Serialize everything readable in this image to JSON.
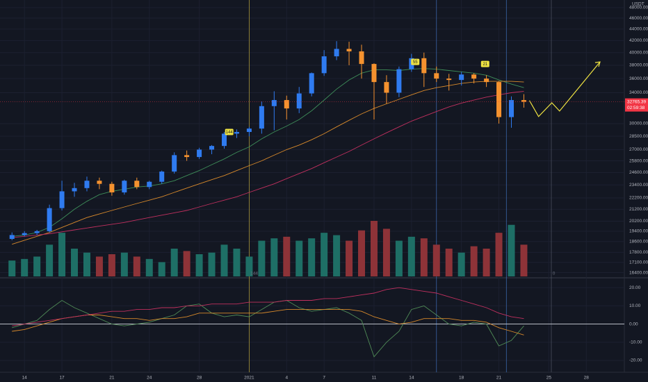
{
  "chart_data": [
    {
      "type": "candlestick",
      "currency": "USDT",
      "x": [
        -1,
        0,
        1,
        2,
        3,
        4,
        5,
        6,
        7,
        8,
        9,
        10,
        11,
        12,
        13,
        14,
        15,
        16,
        17,
        18,
        19,
        20,
        21,
        22,
        23,
        24,
        25,
        26,
        27,
        28,
        29,
        30,
        31,
        32,
        33,
        34,
        35,
        36,
        37,
        38,
        39,
        40
      ],
      "open": [
        18800,
        19100,
        19250,
        19400,
        21300,
        22800,
        23100,
        23800,
        23500,
        22700,
        23800,
        23200,
        23700,
        24700,
        26400,
        26200,
        27000,
        27400,
        28800,
        29000,
        29400,
        32200,
        33000,
        31900,
        33900,
        36800,
        39400,
        40600,
        40200,
        38200,
        35500,
        34000,
        37400,
        39100,
        36800,
        36000,
        35800,
        36600,
        36000,
        35500,
        30800,
        33000
      ],
      "high": [
        19300,
        19400,
        19500,
        21600,
        23800,
        23600,
        24200,
        24100,
        23700,
        23900,
        24100,
        23800,
        24800,
        26700,
        26900,
        27200,
        27500,
        29000,
        29300,
        29600,
        32800,
        34200,
        33600,
        34800,
        36900,
        40400,
        41900,
        41800,
        41300,
        38300,
        36500,
        37800,
        39800,
        40000,
        37800,
        36700,
        37000,
        36800,
        36500,
        35600,
        33500,
        33800
      ],
      "low": [
        18700,
        19000,
        19100,
        19300,
        21100,
        22300,
        22800,
        23000,
        22400,
        22500,
        23000,
        23000,
        23500,
        24500,
        25800,
        26000,
        26500,
        27100,
        28300,
        28500,
        28800,
        29200,
        30500,
        31300,
        33500,
        36400,
        38800,
        38000,
        36000,
        30500,
        32500,
        33400,
        37000,
        34800,
        35500,
        34300,
        35000,
        35300,
        34800,
        30000,
        29500,
        32000
      ],
      "close": [
        19100,
        19250,
        19400,
        21300,
        22800,
        23100,
        23800,
        23500,
        22700,
        23800,
        23200,
        23700,
        24700,
        26400,
        26200,
        27000,
        27400,
        28800,
        29000,
        29400,
        32200,
        33000,
        31900,
        33900,
        36800,
        39400,
        40600,
        40200,
        38200,
        35500,
        34000,
        37400,
        39100,
        36800,
        36000,
        35800,
        36600,
        36000,
        35500,
        30800,
        33000,
        32765.39
      ],
      "up_color": "#2f7bf0",
      "down_color": "#f5922f",
      "volume": [
        20,
        22,
        25,
        40,
        55,
        35,
        30,
        25,
        28,
        30,
        25,
        22,
        18,
        35,
        32,
        28,
        30,
        40,
        35,
        25,
        45,
        48,
        50,
        45,
        48,
        55,
        52,
        45,
        58,
        70,
        60,
        45,
        50,
        48,
        40,
        35,
        30,
        38,
        35,
        55,
        65,
        40
      ],
      "volume_up_color": "#1e6f66",
      "volume_down_color": "#8e3338",
      "series": [
        {
          "color": "#3f8f5a",
          "values": [
            19000,
            19100,
            19300,
            19700,
            20400,
            21200,
            21900,
            22500,
            22800,
            23000,
            23200,
            23300,
            23500,
            23800,
            24300,
            24800,
            25400,
            26000,
            26700,
            27300,
            28200,
            29000,
            29700,
            30500,
            31600,
            33000,
            34500,
            35800,
            36800,
            37300,
            37300,
            37200,
            37400,
            37500,
            37400,
            37200,
            37000,
            36800,
            36500,
            35800,
            35200,
            34700
          ]
        },
        {
          "color": "#d98a2b",
          "values": [
            18400,
            18700,
            19000,
            19300,
            19700,
            20100,
            20500,
            20800,
            21100,
            21400,
            21700,
            22000,
            22300,
            22700,
            23100,
            23500,
            23900,
            24300,
            24800,
            25300,
            25800,
            26400,
            27000,
            27500,
            28100,
            28800,
            29600,
            30400,
            31200,
            31900,
            32500,
            33100,
            33700,
            34300,
            34700,
            35000,
            35300,
            35500,
            35600,
            35600,
            35600,
            35500
          ]
        },
        {
          "color": "#c2305f",
          "values": [
            18900,
            19000,
            19100,
            19200,
            19350,
            19500,
            19650,
            19800,
            19950,
            20100,
            20300,
            20500,
            20700,
            20900,
            21100,
            21400,
            21700,
            22000,
            22300,
            22700,
            23100,
            23500,
            24000,
            24500,
            25000,
            25600,
            26200,
            26800,
            27500,
            28200,
            28900,
            29600,
            30300,
            30900,
            31500,
            32100,
            32600,
            33000,
            33400,
            33700,
            34000,
            34200
          ]
        }
      ],
      "ylim": [
        16150,
        49500
      ],
      "log_scale": true,
      "yticks": [
        {
          "value": 48000,
          "label": "48000.00"
        },
        {
          "value": 46000,
          "label": "46000.00"
        },
        {
          "value": 44000,
          "label": "44000.00"
        },
        {
          "value": 42000,
          "label": "42000.00"
        },
        {
          "value": 40000,
          "label": "40000.00"
        },
        {
          "value": 38000,
          "label": "38000.00"
        },
        {
          "value": 36000,
          "label": "36000.00"
        },
        {
          "value": 34000,
          "label": "34000.00"
        },
        {
          "value": 30000,
          "label": "30000.00"
        },
        {
          "value": 28500,
          "label": "28500.00"
        },
        {
          "value": 27000,
          "label": "27000.00"
        },
        {
          "value": 25800,
          "label": "25800.00"
        },
        {
          "value": 24600,
          "label": "24600.00"
        },
        {
          "value": 23400,
          "label": "23400.00"
        },
        {
          "value": 22200,
          "label": "22200.00"
        },
        {
          "value": 21200,
          "label": "21200.00"
        },
        {
          "value": 20200,
          "label": "20200.00"
        },
        {
          "value": 19400,
          "label": "19400.00"
        },
        {
          "value": 18600,
          "label": "18600.00"
        },
        {
          "value": 17800,
          "label": "17800.00"
        },
        {
          "value": 17100,
          "label": "17100.00"
        },
        {
          "value": 16400,
          "label": "16400.00"
        }
      ],
      "xlim": [
        -1.96,
        48.05
      ],
      "xticks": [
        {
          "value": 0,
          "label": "14"
        },
        {
          "value": 3,
          "label": "17"
        },
        {
          "value": 7,
          "label": "21"
        },
        {
          "value": 10,
          "label": "24"
        },
        {
          "value": 14,
          "label": "28"
        },
        {
          "value": 18,
          "label": "2021"
        },
        {
          "value": 21,
          "label": "4"
        },
        {
          "value": 24,
          "label": "7"
        },
        {
          "value": 28,
          "label": "11"
        },
        {
          "value": 31,
          "label": "14"
        },
        {
          "value": 35,
          "label": "18"
        },
        {
          "value": 38,
          "label": "21"
        },
        {
          "value": 42,
          "label": "25"
        },
        {
          "value": 45,
          "label": "28"
        }
      ],
      "grid": true,
      "vlines": [
        {
          "x": 18,
          "color": "#a8963a"
        },
        {
          "x": 33,
          "color": "#3a64a8"
        },
        {
          "x": 38.6,
          "color": "#3a64a8"
        },
        {
          "x": 42.2,
          "color": "#4a505e"
        }
      ],
      "badges": [
        {
          "label": "144",
          "x": 16.4,
          "y": 29000
        },
        {
          "label": "55",
          "x": 31.3,
          "y": 38520
        },
        {
          "label": "21",
          "x": 36.9,
          "y": 38200
        }
      ],
      "markers": [
        {
          "label": "144",
          "x": 18.4
        },
        {
          "label": "0",
          "x": 42.4
        }
      ],
      "projection": {
        "color": "#f0e442",
        "x": [
          40.45,
          41.18,
          42.24,
          42.86,
          46.1
        ],
        "y": [
          32930,
          30870,
          32640,
          31560,
          38520
        ]
      },
      "last_price": 32765.39,
      "countdown": "02:59:38",
      "last_price_color": "#f23645"
    },
    {
      "type": "line",
      "x": [
        -1,
        0,
        1,
        2,
        3,
        4,
        5,
        6,
        7,
        8,
        9,
        10,
        11,
        12,
        13,
        14,
        15,
        16,
        17,
        18,
        19,
        20,
        21,
        22,
        23,
        24,
        25,
        26,
        27,
        28,
        29,
        30,
        31,
        32,
        33,
        34,
        35,
        36,
        37,
        38,
        39,
        40
      ],
      "series": [
        {
          "color": "#4f8a56",
          "values": [
            -2,
            0,
            2,
            8,
            13,
            9,
            6,
            3,
            0,
            -1,
            0,
            1,
            3,
            5,
            10,
            11,
            6,
            4,
            5,
            4,
            8,
            12,
            13,
            9,
            7,
            8,
            9,
            6,
            2,
            -18,
            -10,
            -4,
            8,
            10,
            5,
            0,
            -1,
            1,
            0,
            -12,
            -9,
            -1
          ]
        },
        {
          "color": "#d98a2b",
          "values": [
            -4,
            -3,
            -1,
            1,
            3,
            4,
            5,
            5,
            4,
            3,
            3,
            2,
            3,
            3,
            4,
            6,
            6,
            6,
            6,
            6,
            6,
            7,
            8,
            8,
            8,
            8,
            8,
            8,
            7,
            4,
            2,
            0,
            1,
            3,
            3,
            3,
            2,
            2,
            1,
            -2,
            -4,
            -6
          ]
        },
        {
          "color": "#c2305f",
          "values": [
            -1,
            0,
            1,
            2,
            3,
            4,
            5,
            6,
            7,
            7,
            8,
            8,
            9,
            9,
            10,
            10,
            11,
            11,
            11,
            12,
            12,
            12,
            13,
            13,
            13,
            14,
            14,
            15,
            16,
            17,
            19,
            20,
            19,
            18,
            17,
            15,
            13,
            11,
            9,
            6,
            4,
            3
          ]
        }
      ],
      "ylim": [
        -26.5,
        25.4
      ],
      "yticks": [
        {
          "value": 20,
          "label": "20.00"
        },
        {
          "value": 10,
          "label": "10.00"
        },
        {
          "value": 0,
          "label": "0.00"
        },
        {
          "value": -10,
          "label": "-10.00"
        },
        {
          "value": -20,
          "label": "-20.00"
        }
      ],
      "hline": 0
    }
  ]
}
